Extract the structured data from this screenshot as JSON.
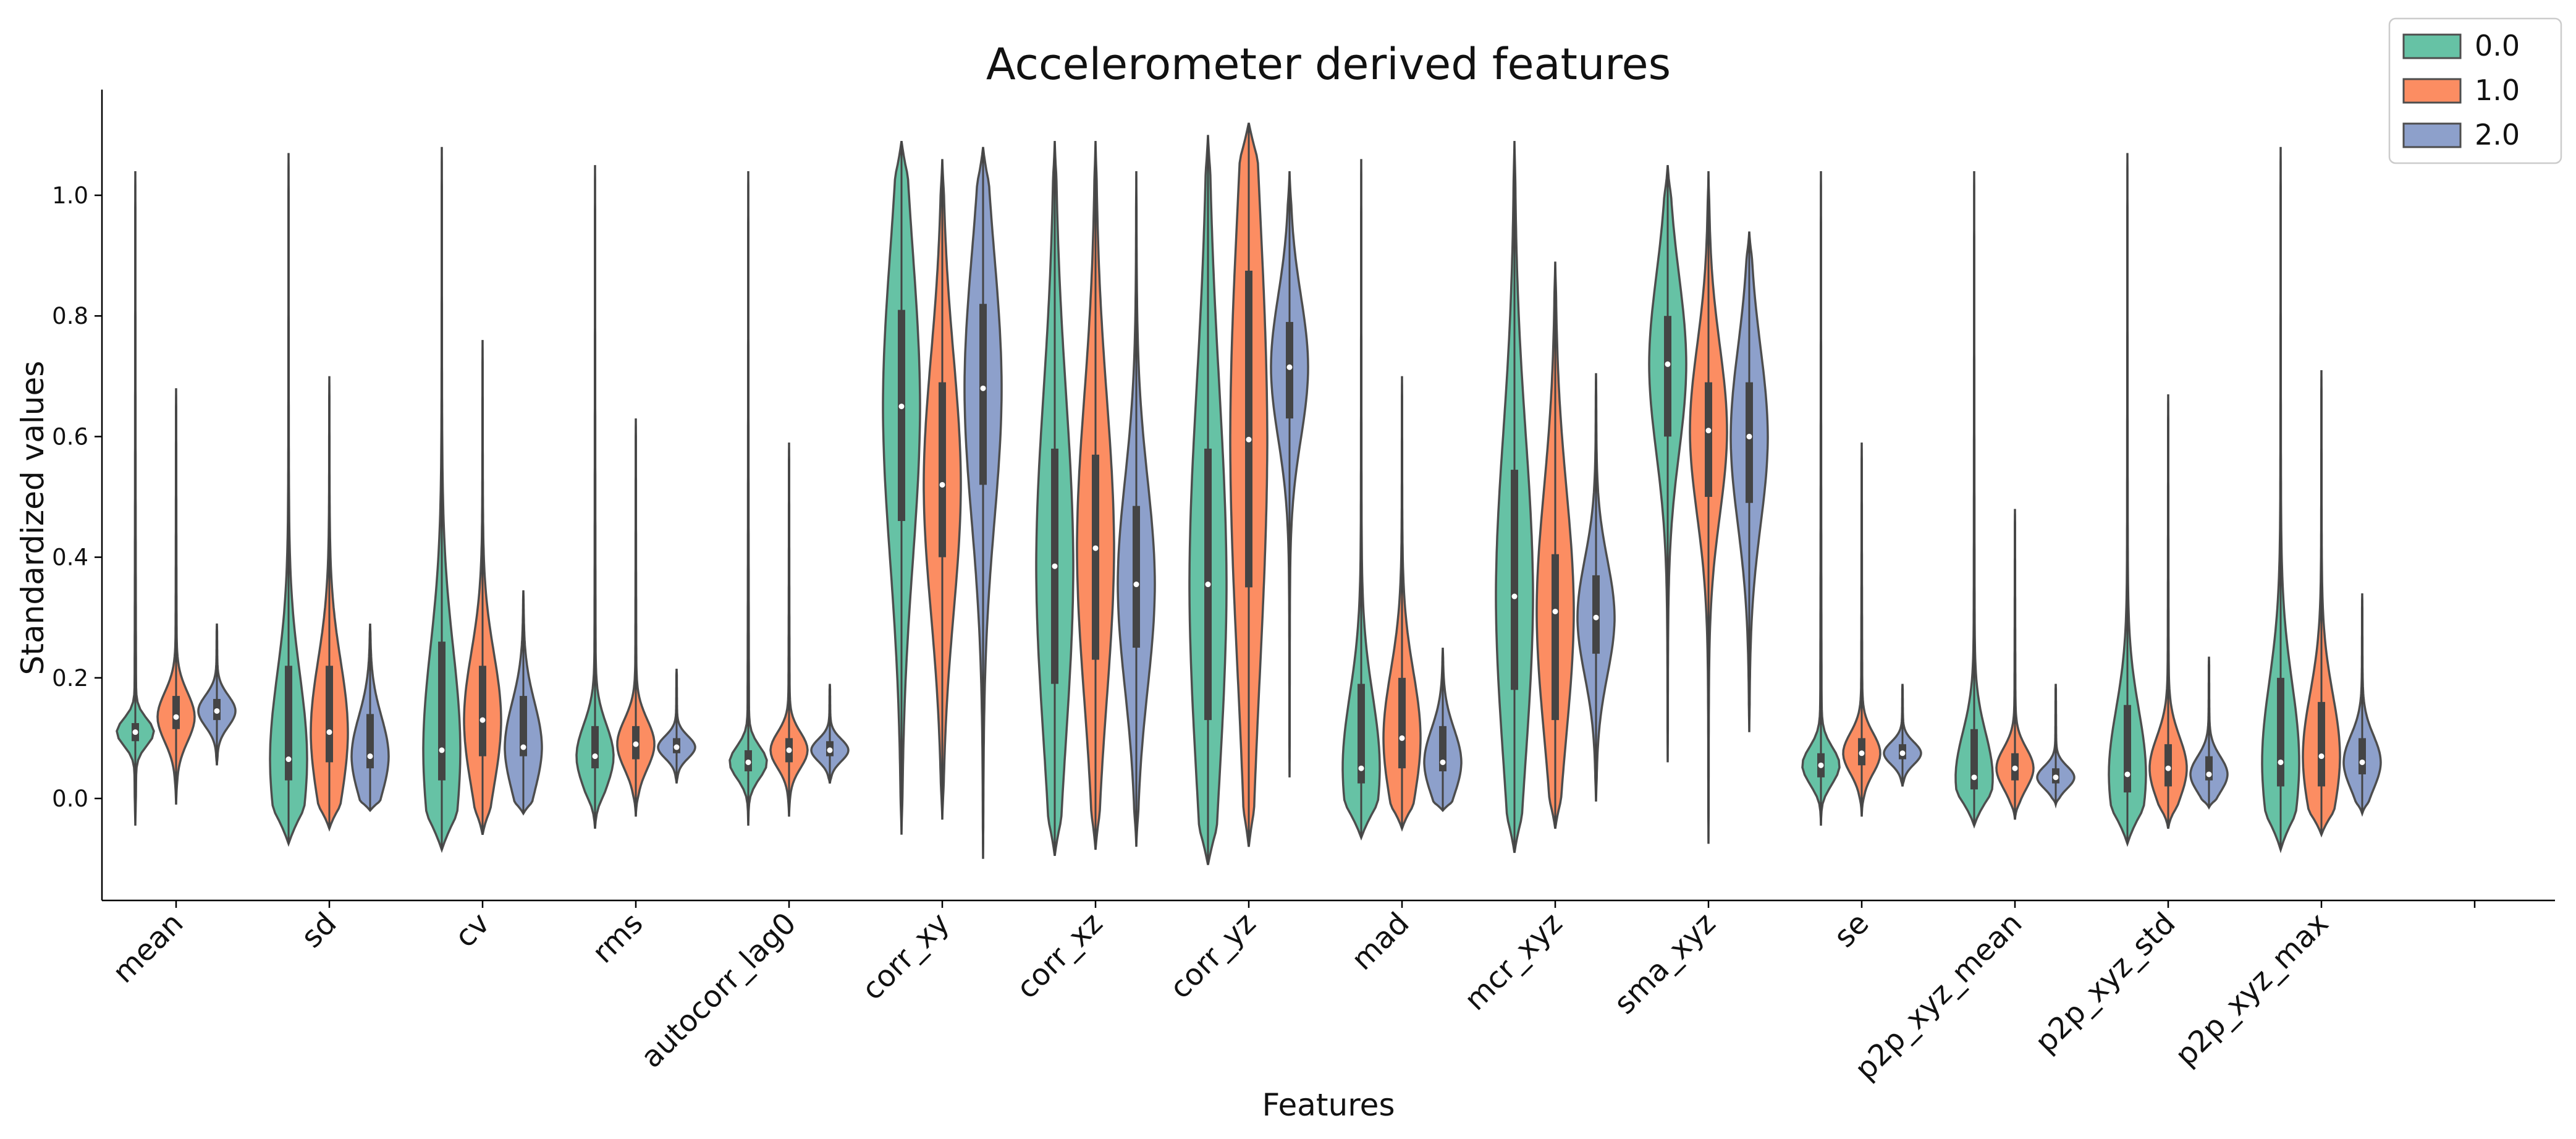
{
  "chart_data": {
    "type": "violin",
    "title": "Accelerometer derived features",
    "xlabel": "Features",
    "ylabel": "Standardized values",
    "ylim": [
      -0.17,
      1.18
    ],
    "yticks": [
      "0.0",
      "0.2",
      "0.4",
      "0.6",
      "0.8",
      "1.0"
    ],
    "categories": [
      "mean",
      "sd",
      "cv",
      "rms",
      "autocorr_lag0",
      "corr_xy",
      "corr_xz",
      "corr_yz",
      "mad",
      "mcr_xyz",
      "sma_xyz",
      "se",
      "p2p_xyz_mean",
      "p2p_xyz_std",
      "p2p_xyz_max"
    ],
    "legend_position": "top-right",
    "series": [
      {
        "name": "0.0",
        "color": "#66c2a5",
        "median": [
          0.11,
          0.065,
          0.08,
          0.07,
          0.06,
          0.65,
          0.385,
          0.355,
          0.05,
          0.335,
          0.72,
          0.055,
          0.035,
          0.04,
          0.06
        ],
        "q1": [
          0.095,
          0.03,
          0.03,
          0.05,
          0.045,
          0.46,
          0.19,
          0.13,
          0.025,
          0.18,
          0.6,
          0.035,
          0.015,
          0.01,
          0.02
        ],
        "q3": [
          0.125,
          0.22,
          0.26,
          0.12,
          0.08,
          0.81,
          0.58,
          0.58,
          0.19,
          0.545,
          0.8,
          0.075,
          0.115,
          0.155,
          0.2
        ],
        "min": [
          -0.045,
          -0.075,
          -0.085,
          -0.05,
          -0.045,
          -0.06,
          -0.095,
          -0.11,
          -0.065,
          -0.09,
          0.06,
          -0.045,
          -0.045,
          -0.075,
          -0.085
        ],
        "max": [
          1.04,
          1.07,
          1.08,
          1.05,
          1.04,
          1.09,
          1.09,
          1.1,
          1.06,
          1.09,
          1.05,
          1.04,
          1.04,
          1.07,
          1.08
        ]
      },
      {
        "name": "1.0",
        "color": "#fc8d62",
        "median": [
          0.135,
          0.11,
          0.13,
          0.09,
          0.08,
          0.52,
          0.415,
          0.595,
          0.1,
          0.31,
          0.61,
          0.075,
          0.05,
          0.05,
          0.07
        ],
        "q1": [
          0.115,
          0.06,
          0.07,
          0.065,
          0.06,
          0.4,
          0.23,
          0.35,
          0.05,
          0.13,
          0.5,
          0.055,
          0.03,
          0.02,
          0.02
        ],
        "q3": [
          0.17,
          0.22,
          0.22,
          0.12,
          0.1,
          0.69,
          0.57,
          0.875,
          0.2,
          0.405,
          0.69,
          0.1,
          0.075,
          0.09,
          0.16
        ],
        "min": [
          -0.01,
          -0.05,
          -0.06,
          -0.03,
          -0.03,
          -0.035,
          -0.085,
          -0.08,
          -0.05,
          -0.05,
          -0.075,
          -0.03,
          -0.035,
          -0.05,
          -0.06
        ],
        "max": [
          0.68,
          0.7,
          0.76,
          0.63,
          0.59,
          1.06,
          1.09,
          1.12,
          0.7,
          0.89,
          1.04,
          0.59,
          0.48,
          0.67,
          0.71
        ]
      },
      {
        "name": "2.0",
        "color": "#8da0cb",
        "median": [
          0.145,
          0.07,
          0.085,
          0.085,
          0.08,
          0.68,
          0.355,
          0.715,
          0.06,
          0.3,
          0.6,
          0.075,
          0.035,
          0.04,
          0.06
        ],
        "q1": [
          0.13,
          0.05,
          0.07,
          0.075,
          0.07,
          0.52,
          0.25,
          0.63,
          0.045,
          0.24,
          0.49,
          0.065,
          0.025,
          0.03,
          0.04
        ],
        "q3": [
          0.165,
          0.14,
          0.17,
          0.1,
          0.095,
          0.82,
          0.485,
          0.79,
          0.12,
          0.37,
          0.69,
          0.09,
          0.05,
          0.07,
          0.1
        ],
        "min": [
          0.055,
          -0.02,
          -0.025,
          0.025,
          0.025,
          -0.1,
          -0.08,
          0.035,
          -0.02,
          -0.005,
          0.11,
          0.02,
          -0.01,
          -0.015,
          -0.025
        ],
        "max": [
          0.29,
          0.29,
          0.345,
          0.215,
          0.19,
          1.08,
          1.04,
          1.04,
          0.25,
          0.705,
          0.94,
          0.19,
          0.19,
          0.235,
          0.34
        ]
      }
    ]
  }
}
